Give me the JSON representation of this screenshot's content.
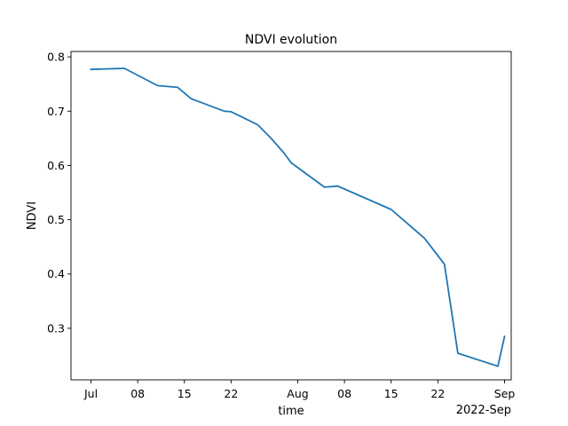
{
  "chart_data": {
    "type": "line",
    "title": "NDVI evolution",
    "xlabel": "time",
    "ylabel": "NDVI",
    "x_offset_label": "2022-Sep",
    "xlim": [
      "2022-06-28",
      "2022-09-02"
    ],
    "ylim": [
      0.205,
      0.81
    ],
    "x_ticks": [
      {
        "date": "2022-07-01",
        "label": "Jul"
      },
      {
        "date": "2022-07-08",
        "label": "08"
      },
      {
        "date": "2022-07-15",
        "label": "15"
      },
      {
        "date": "2022-07-22",
        "label": "22"
      },
      {
        "date": "2022-08-01",
        "label": "Aug"
      },
      {
        "date": "2022-08-08",
        "label": "08"
      },
      {
        "date": "2022-08-15",
        "label": "15"
      },
      {
        "date": "2022-08-22",
        "label": "22"
      },
      {
        "date": "2022-09-01",
        "label": "Sep"
      }
    ],
    "y_ticks": [
      {
        "value": 0.3,
        "label": "0.3"
      },
      {
        "value": 0.4,
        "label": "0.4"
      },
      {
        "value": 0.5,
        "label": "0.5"
      },
      {
        "value": 0.6,
        "label": "0.6"
      },
      {
        "value": 0.7,
        "label": "0.7"
      },
      {
        "value": 0.8,
        "label": "0.8"
      }
    ],
    "grid": false,
    "series": [
      {
        "color": "#1f77b4",
        "x": [
          "2022-07-01",
          "2022-07-06",
          "2022-07-11",
          "2022-07-14",
          "2022-07-16",
          "2022-07-21",
          "2022-07-22",
          "2022-07-26",
          "2022-07-28",
          "2022-07-30",
          "2022-07-31",
          "2022-08-05",
          "2022-08-07",
          "2022-08-15",
          "2022-08-20",
          "2022-08-23",
          "2022-08-25",
          "2022-08-31",
          "2022-09-01"
        ],
        "y": [
          0.777,
          0.779,
          0.747,
          0.744,
          0.723,
          0.7,
          0.699,
          0.675,
          0.65,
          0.622,
          0.605,
          0.56,
          0.562,
          0.519,
          0.466,
          0.418,
          0.254,
          0.23,
          0.285
        ]
      }
    ]
  }
}
